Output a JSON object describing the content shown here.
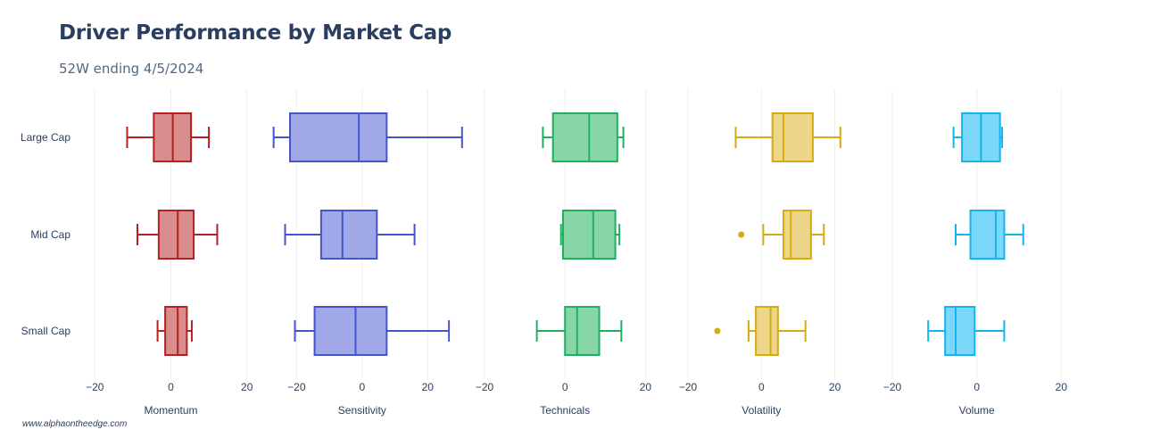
{
  "title": "Driver Performance by Market Cap",
  "subtitle": "52W ending 4/5/2024",
  "footer": "www.alphaontheedge.com",
  "chart_data": {
    "type": "box",
    "orientation": "horizontal",
    "categories": [
      "Large Cap",
      "Mid Cap",
      "Small Cap"
    ],
    "panels": [
      {
        "name": "Momentum",
        "xlim": [
          -25,
          25
        ],
        "ticks": [
          -20,
          0,
          20
        ],
        "color": "#b22222",
        "fill": "#d98d8d",
        "boxes": [
          {
            "category": "Large Cap",
            "min": -11.5,
            "q1": -4.5,
            "median": 0.5,
            "q3": 5.3,
            "max": 10
          },
          {
            "category": "Mid Cap",
            "min": -8.8,
            "q1": -3.2,
            "median": 1.8,
            "q3": 6,
            "max": 12.2
          },
          {
            "category": "Small Cap",
            "min": -3.5,
            "q1": -1.5,
            "median": 1.8,
            "q3": 4.2,
            "max": 5.5
          }
        ]
      },
      {
        "name": "Sensitivity",
        "xlim": [
          -25,
          33
        ],
        "ticks": [
          -20,
          0,
          20
        ],
        "color": "#4455cc",
        "fill": "#a0a8e8",
        "boxes": [
          {
            "category": "Large Cap",
            "min": -27,
            "q1": -22,
            "median": -1,
            "q3": 7.5,
            "max": 30.5
          },
          {
            "category": "Mid Cap",
            "min": -23.5,
            "q1": -12.5,
            "median": -6,
            "q3": 4.5,
            "max": 16
          },
          {
            "category": "Small Cap",
            "min": -20.5,
            "q1": -14.5,
            "median": -2,
            "q3": 7.5,
            "max": 26.5
          }
        ]
      },
      {
        "name": "Technicals",
        "xlim": [
          -20,
          27
        ],
        "ticks": [
          -20,
          0,
          20
        ],
        "color": "#1faf5f",
        "fill": "#86d6a8",
        "boxes": [
          {
            "category": "Large Cap",
            "min": -5.5,
            "q1": -3,
            "median": 6,
            "q3": 13,
            "max": 14.5
          },
          {
            "category": "Mid Cap",
            "min": -1,
            "q1": -0.5,
            "median": 7,
            "q3": 12.5,
            "max": 13.5
          },
          {
            "category": "Small Cap",
            "min": -7,
            "q1": 0,
            "median": 3,
            "q3": 8.5,
            "max": 14
          }
        ]
      },
      {
        "name": "Volatility",
        "xlim": [
          -20,
          32
        ],
        "ticks": [
          -20,
          0,
          20
        ],
        "color": "#d4ac10",
        "fill": "#edd68a",
        "boxes": [
          {
            "category": "Large Cap",
            "min": -7,
            "q1": 3,
            "median": 6,
            "q3": 14,
            "max": 21.5
          },
          {
            "category": "Mid Cap",
            "min": 0.5,
            "q1": 6,
            "median": 8,
            "q3": 13.5,
            "max": 17,
            "outliers": [
              -5.5
            ]
          },
          {
            "category": "Small Cap",
            "min": -3.5,
            "q1": -1.5,
            "median": 2.5,
            "q3": 4.5,
            "max": 12,
            "outliers": [
              -12
            ]
          }
        ]
      },
      {
        "name": "Volume",
        "xlim": [
          -20,
          25
        ],
        "ticks": [
          -20,
          0,
          20
        ],
        "color": "#14b4ee",
        "fill": "#7bd8fb",
        "boxes": [
          {
            "category": "Large Cap",
            "min": -5.5,
            "q1": -3.5,
            "median": 1,
            "q3": 5.5,
            "max": 6
          },
          {
            "category": "Mid Cap",
            "min": -5,
            "q1": -1.5,
            "median": 4.5,
            "q3": 6.5,
            "max": 11
          },
          {
            "category": "Small Cap",
            "min": -11.5,
            "q1": -7.5,
            "median": -5,
            "q3": -0.5,
            "max": 6.5
          }
        ]
      }
    ]
  }
}
